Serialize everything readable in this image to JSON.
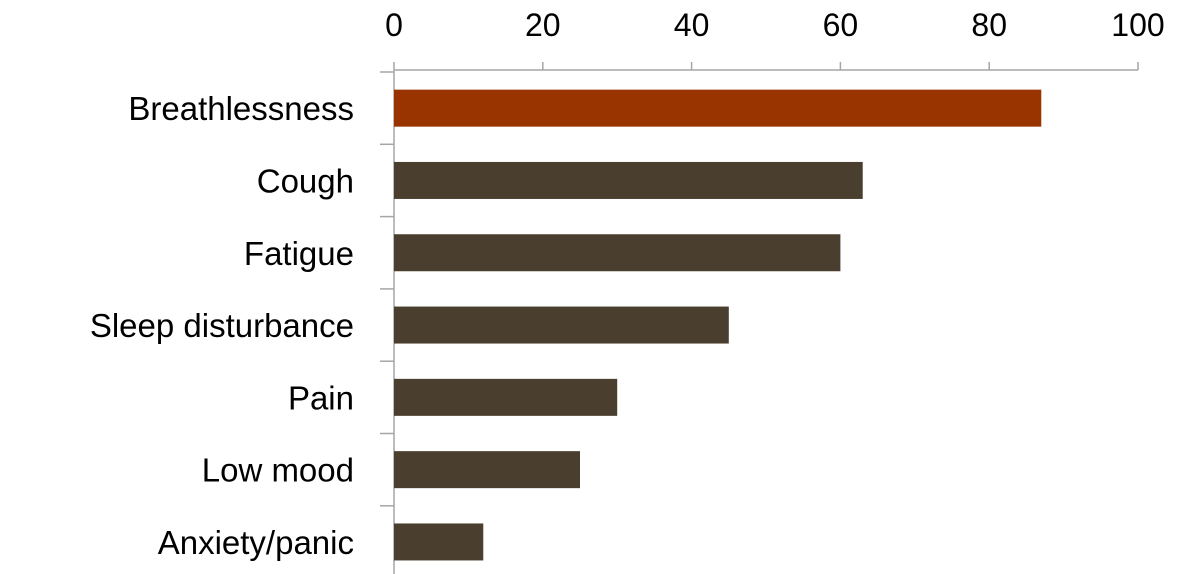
{
  "chart_data": {
    "type": "bar",
    "orientation": "horizontal",
    "title": "",
    "xlabel": "",
    "ylabel": "",
    "xlim": [
      0,
      100
    ],
    "x_ticks": [
      "0",
      "20",
      "40",
      "60",
      "80",
      "100"
    ],
    "x_axis_position": "top",
    "grid": false,
    "legend": "none",
    "categories": [
      "Breathlessness",
      "Cough",
      "Fatigue",
      "Sleep disturbance",
      "Pain",
      "Low mood",
      "Anxiety/panic"
    ],
    "values": [
      87,
      63,
      60,
      45,
      30,
      25,
      12
    ],
    "colors": {
      "highlight": "#993300",
      "default": "#4a3f2f",
      "axis": "#a6a6a6"
    },
    "highlight_index": 0
  }
}
